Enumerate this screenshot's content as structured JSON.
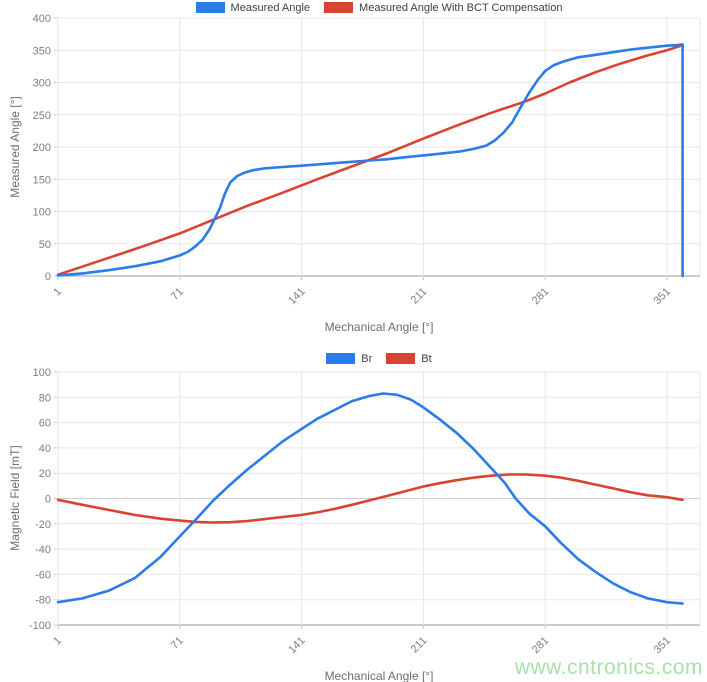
{
  "page": {
    "background": "#ffffff"
  },
  "watermark": {
    "text": "www.cntronics.com",
    "color": "#a5dea5"
  },
  "style": {
    "grid_color": "#e7e7e7",
    "axis_line_color": "#9a9a9a",
    "zero_line_color": "#cfcfcf",
    "tick_mark_color": "#c9c9c9",
    "tick_label_color": "#7e7e7e",
    "legend_text_color": "#3f3f3f",
    "axis_title_color": "#6e6e6e"
  },
  "chart_data": [
    {
      "type": "line",
      "title": "",
      "xlabel": "Mechanical Angle [°]",
      "ylabel": "Measured Angle [°]",
      "xlim": [
        1,
        370
      ],
      "ylim": [
        0,
        400
      ],
      "xticks": [
        1,
        71,
        141,
        211,
        281,
        351
      ],
      "yticks": [
        0,
        50,
        100,
        150,
        200,
        250,
        300,
        350,
        400
      ],
      "grid": true,
      "legend_position": "top",
      "series": [
        {
          "name": "Measured Angle",
          "color": "#2b7be9",
          "x": [
            1,
            15,
            30,
            45,
            60,
            71,
            76,
            80,
            84,
            88,
            91,
            94,
            97,
            100,
            104,
            108,
            113,
            120,
            130,
            141,
            155,
            170,
            180,
            190,
            200,
            211,
            222,
            232,
            240,
            247,
            252,
            257,
            262,
            267,
            272,
            277,
            281,
            286,
            292,
            300,
            310,
            320,
            330,
            340,
            351,
            357,
            360,
            360
          ],
          "y": [
            1,
            4,
            9,
            15,
            23,
            32,
            38,
            46,
            56,
            72,
            88,
            105,
            128,
            145,
            155,
            160,
            164,
            167,
            169,
            171,
            174,
            177,
            179,
            181,
            184,
            187,
            190,
            193,
            197,
            202,
            210,
            222,
            238,
            262,
            285,
            305,
            318,
            327,
            333,
            339,
            343,
            347,
            351,
            354,
            357,
            358,
            359,
            0
          ]
        },
        {
          "name": "Measured Angle With BCT Compensation",
          "color": "#d94432",
          "x": [
            1,
            20,
            40,
            54,
            71,
            91,
            110,
            130,
            150,
            170,
            190,
            211,
            230,
            250,
            270,
            281,
            295,
            310,
            325,
            340,
            351,
            360
          ],
          "y": [
            2,
            19,
            37,
            50,
            66,
            88,
            109,
            129,
            150,
            170,
            190,
            213,
            233,
            253,
            271,
            283,
            300,
            316,
            330,
            342,
            350,
            358
          ]
        }
      ]
    },
    {
      "type": "line",
      "title": "",
      "xlabel": "Mechanical Angle [°]",
      "ylabel": "Magnetic Field [mT]",
      "xlim": [
        1,
        370
      ],
      "ylim": [
        -100,
        100
      ],
      "xticks": [
        1,
        71,
        141,
        211,
        281,
        351
      ],
      "yticks": [
        -100,
        -80,
        -60,
        -40,
        -20,
        0,
        20,
        40,
        60,
        80,
        100
      ],
      "grid": true,
      "legend_position": "top",
      "series": [
        {
          "name": "Br",
          "color": "#2b7be9",
          "x": [
            1,
            15,
            30,
            45,
            60,
            71,
            80,
            90,
            100,
            110,
            120,
            130,
            141,
            150,
            160,
            170,
            180,
            188,
            196,
            204,
            211,
            220,
            230,
            240,
            250,
            258,
            264,
            272,
            281,
            290,
            300,
            310,
            320,
            330,
            340,
            351,
            360
          ],
          "y": [
            -82,
            -79,
            -73,
            -63,
            -46,
            -30,
            -17,
            -2,
            11,
            23,
            34,
            45,
            55,
            63,
            70,
            77,
            81,
            83,
            82,
            78,
            72,
            63,
            52,
            39,
            24,
            12,
            0,
            -12,
            -22,
            -35,
            -48,
            -58,
            -67,
            -74,
            -79,
            -82,
            -83
          ]
        },
        {
          "name": "Bt",
          "color": "#d94432",
          "x": [
            1,
            15,
            30,
            45,
            60,
            71,
            80,
            90,
            100,
            110,
            120,
            130,
            141,
            150,
            160,
            170,
            180,
            190,
            200,
            211,
            220,
            230,
            240,
            250,
            260,
            270,
            281,
            290,
            300,
            310,
            320,
            330,
            340,
            351,
            360
          ],
          "y": [
            -1,
            -5,
            -9,
            -13,
            -16,
            -17.5,
            -18.5,
            -19,
            -18.7,
            -17.8,
            -16.3,
            -14.6,
            -13,
            -11,
            -8.2,
            -5,
            -1.5,
            2,
            5.5,
            9.5,
            12,
            14.5,
            16.5,
            18,
            19,
            19,
            18,
            16.5,
            14,
            11,
            8,
            5,
            2.5,
            1,
            -1
          ]
        }
      ]
    }
  ]
}
